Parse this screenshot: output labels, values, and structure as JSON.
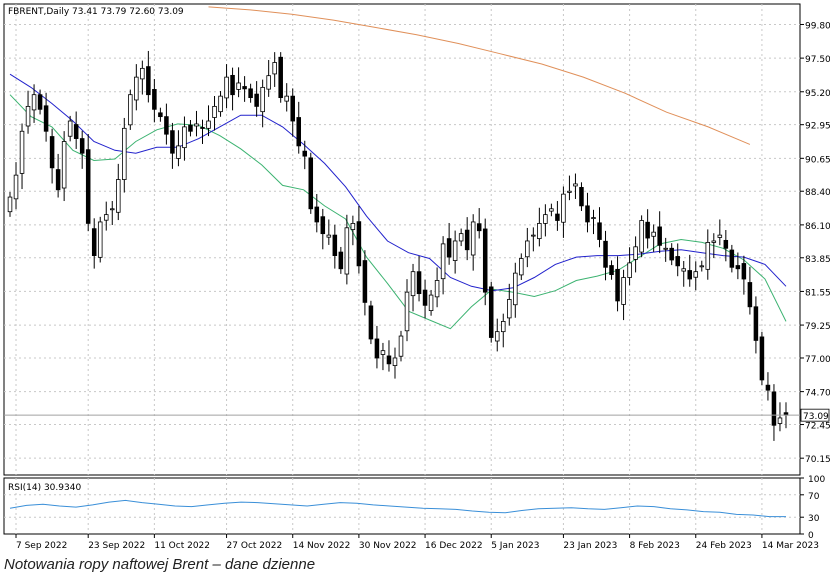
{
  "header": {
    "symbol_info": "FBRENT,Daily  73.41 73.79 72.60 73.09"
  },
  "caption": "Notowania ropy naftowej Brent – dane dzienne",
  "colors": {
    "bull": "#ffffff",
    "bear": "#000000",
    "ma_short": "#3cb371",
    "ma_mid": "#2222cc",
    "ma_long": "#e0905a",
    "rsi": "#3a8fd8",
    "grid": "#c8c8c8",
    "price_line": "#a0a0a0"
  },
  "chart_data": [
    {
      "type": "candlestick",
      "title": "FBRENT,Daily  73.41 73.79 72.60 73.09",
      "last_price": "73.09",
      "ylim": [
        69.0,
        101.2
      ],
      "y_ticks": [
        "99.80",
        "97.50",
        "95.20",
        "92.95",
        "90.65",
        "88.40",
        "86.10",
        "83.85",
        "81.55",
        "79.25",
        "77.00",
        "74.70",
        "72.45",
        "70.15"
      ],
      "x_ticks": [
        "7 Sep 2022",
        "23 Sep 2022",
        "11 Oct 2022",
        "27 Oct 2022",
        "14 Nov 2022",
        "30 Nov 2022",
        "16 Dec 2022",
        "5 Jan 2023",
        "23 Jan 2023",
        "8 Feb 2023",
        "24 Feb 2023",
        "14 Mar 2023"
      ],
      "x_tick_bar_index": [
        1,
        13,
        24,
        36,
        47,
        58,
        69,
        80,
        92,
        103,
        114,
        125
      ],
      "grid": true,
      "close": [
        88.0,
        89.5,
        92.5,
        94.2,
        95.0,
        94.0,
        92.5,
        90.0,
        88.5,
        91.8,
        93.2,
        92.0,
        91.0,
        86.2,
        84.0,
        86.3,
        86.8,
        87.2,
        89.2,
        92.7,
        95.0,
        96.2,
        96.8,
        95.0,
        94.0,
        93.5,
        92.3,
        91.0,
        91.5,
        92.8,
        92.5,
        93.0,
        92.7,
        93.2,
        94.2,
        94.9,
        96.2,
        95.0,
        95.8,
        95.4,
        94.8,
        94.2,
        95.5,
        96.3,
        97.2,
        94.8,
        94.9,
        93.2,
        91.5,
        90.8,
        87.2,
        86.3,
        85.5,
        85.4,
        84.0,
        83.1,
        85.9,
        86.2,
        83.3,
        80.8,
        78.3,
        77.0,
        77.5,
        76.6,
        77.0,
        78.5,
        81.5,
        82.9,
        81.4,
        80.6,
        81.3,
        82.3,
        84.8,
        83.9,
        85.0,
        85.5,
        84.4,
        86.3,
        85.7,
        81.5,
        78.4,
        78.8,
        79.5,
        81.0,
        82.8,
        83.8,
        85.0,
        85.4,
        86.2,
        86.8,
        87.2,
        86.4,
        88.2,
        88.4,
        88.9,
        87.4,
        86.3,
        86.6,
        85.1,
        83.2,
        82.7,
        80.9,
        82.5,
        83.5,
        84.6,
        86.4,
        85.2,
        85.6,
        84.7,
        84.5,
        83.7,
        83.3,
        83.1,
        82.4,
        82.9,
        83.3,
        84.9,
        85.0,
        85.4,
        84.5,
        83.2,
        83.1,
        82.4,
        80.5,
        78.2,
        75.5,
        74.8,
        72.4,
        72.9,
        73.09
      ],
      "ohlc_note": "open/high/low per candle are estimated from the image",
      "moving_averages": [
        {
          "name": "",
          "color_key": "ma_short",
          "approx_values": [
            95.0,
            93.5,
            92.8,
            91.2,
            90.5,
            90.6,
            91.8,
            92.6,
            93.0,
            92.9,
            92.2,
            91.3,
            90.2,
            88.8,
            88.5,
            87.4,
            86.5,
            83.9,
            82.1,
            80.2,
            79.6,
            79.0,
            80.5,
            81.7,
            81.5,
            81.2,
            81.6,
            82.3,
            82.6,
            83.0,
            83.9,
            84.8,
            85.1,
            84.9,
            84.5,
            83.7,
            82.4,
            79.5
          ]
        },
        {
          "name": "",
          "color_key": "ma_mid",
          "approx_values": [
            96.4,
            95.5,
            94.4,
            93.2,
            91.8,
            91.2,
            91.0,
            91.4,
            91.4,
            92.0,
            92.8,
            93.6,
            93.6,
            92.8,
            91.6,
            90.3,
            88.7,
            86.7,
            85.0,
            84.2,
            83.8,
            82.5,
            81.9,
            81.6,
            81.8,
            82.5,
            83.4,
            83.9,
            84.0,
            84.0,
            84.1,
            84.3,
            84.4,
            84.2,
            84.0,
            83.9,
            83.4,
            81.9
          ]
        },
        {
          "name": "",
          "color_key": "ma_long",
          "approx_values": [
            101.0,
            100.8,
            100.5,
            100.1,
            99.6,
            99.1,
            98.5,
            97.8,
            97.1,
            96.2,
            95.1,
            93.8,
            92.8,
            91.6
          ]
        }
      ]
    },
    {
      "type": "line",
      "title": "RSI(14) 30.9340",
      "ylim": [
        0,
        100
      ],
      "y_ticks": [
        "100",
        "70",
        "30",
        "0"
      ],
      "series": [
        {
          "name": "",
          "values": [
            46,
            51,
            53,
            50,
            48,
            52,
            57,
            60,
            56,
            53,
            50,
            49,
            52,
            55,
            57,
            56,
            54,
            52,
            50,
            53,
            56,
            55,
            52,
            50,
            48,
            46,
            45,
            44,
            41,
            39,
            38,
            42,
            45,
            46,
            47,
            45,
            44,
            47,
            50,
            49,
            45,
            43,
            40,
            39,
            35,
            34,
            31,
            31
          ]
        }
      ]
    }
  ]
}
